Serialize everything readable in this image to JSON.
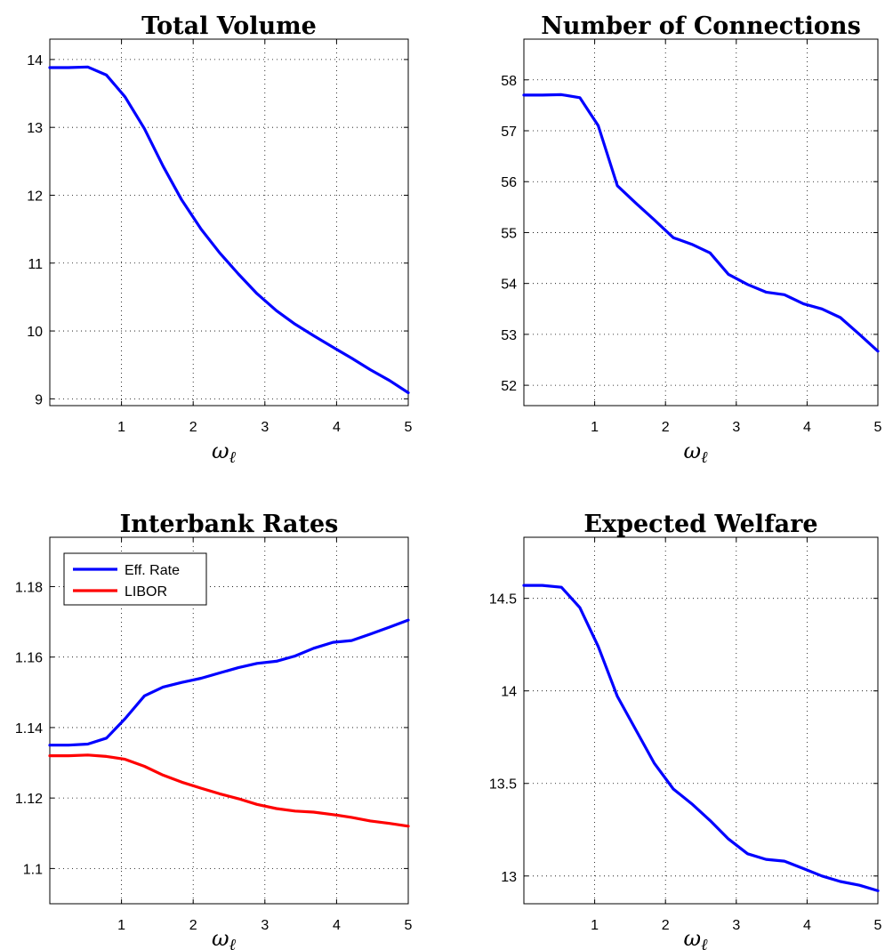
{
  "chart_data": [
    {
      "type": "line",
      "title": "Total Volume",
      "xlabel": "ωℓ",
      "xlim": [
        0,
        5
      ],
      "ylim": [
        8.9,
        14.3
      ],
      "xticks": [
        1,
        2,
        3,
        4,
        5
      ],
      "yticks": [
        9,
        10,
        11,
        12,
        13,
        14
      ],
      "ytick_labels": [
        "9",
        "10",
        "11",
        "12",
        "13",
        "14"
      ],
      "grid": true,
      "series": [
        {
          "color": "#0000ff",
          "x": [
            0,
            0.26,
            0.53,
            0.79,
            1.05,
            1.32,
            1.58,
            1.84,
            2.11,
            2.37,
            2.63,
            2.89,
            3.16,
            3.42,
            3.68,
            3.95,
            4.21,
            4.47,
            4.74,
            5.0
          ],
          "y": [
            13.88,
            13.88,
            13.89,
            13.77,
            13.45,
            12.98,
            12.43,
            11.93,
            11.5,
            11.15,
            10.84,
            10.55,
            10.3,
            10.1,
            9.93,
            9.76,
            9.6,
            9.43,
            9.27,
            9.09
          ]
        }
      ]
    },
    {
      "type": "line",
      "title": "Number of Connections",
      "xlabel": "ωℓ",
      "xlim": [
        0,
        5
      ],
      "ylim": [
        51.6,
        58.8
      ],
      "xticks": [
        1,
        2,
        3,
        4,
        5
      ],
      "yticks": [
        52,
        53,
        54,
        55,
        56,
        57,
        58
      ],
      "ytick_labels": [
        "52",
        "53",
        "54",
        "55",
        "56",
        "57",
        "58"
      ],
      "grid": true,
      "series": [
        {
          "color": "#0000ff",
          "x": [
            0,
            0.26,
            0.53,
            0.79,
            1.05,
            1.32,
            1.58,
            1.84,
            2.11,
            2.37,
            2.63,
            2.89,
            3.16,
            3.42,
            3.68,
            3.95,
            4.21,
            4.47,
            4.74,
            5.0
          ],
          "y": [
            57.7,
            57.7,
            57.71,
            57.65,
            57.1,
            55.92,
            55.58,
            55.25,
            54.9,
            54.77,
            54.6,
            54.18,
            53.98,
            53.83,
            53.78,
            53.6,
            53.5,
            53.33,
            53.0,
            52.67
          ]
        }
      ]
    },
    {
      "type": "line",
      "title": "Interbank Rates",
      "xlabel": "ωℓ",
      "xlim": [
        0,
        5
      ],
      "ylim": [
        1.09,
        1.194
      ],
      "xticks": [
        1,
        2,
        3,
        4,
        5
      ],
      "yticks": [
        1.1,
        1.12,
        1.14,
        1.16,
        1.18
      ],
      "ytick_labels": [
        "1.1",
        "1.12",
        "1.14",
        "1.16",
        "1.18"
      ],
      "grid": true,
      "legend": "top-left",
      "series": [
        {
          "name": "Eff. Rate",
          "color": "#0000ff",
          "x": [
            0,
            0.26,
            0.53,
            0.79,
            1.05,
            1.32,
            1.58,
            1.84,
            2.11,
            2.37,
            2.63,
            2.89,
            3.16,
            3.42,
            3.68,
            3.95,
            4.21,
            4.47,
            4.74,
            5.0
          ],
          "y": [
            1.135,
            1.135,
            1.1353,
            1.137,
            1.1425,
            1.149,
            1.1515,
            1.1528,
            1.154,
            1.1555,
            1.157,
            1.1582,
            1.1588,
            1.1603,
            1.1625,
            1.1642,
            1.1647,
            1.1665,
            1.1685,
            1.1705
          ]
        },
        {
          "name": "LIBOR",
          "color": "#ff0000",
          "x": [
            0,
            0.26,
            0.53,
            0.79,
            1.05,
            1.32,
            1.58,
            1.84,
            2.11,
            2.37,
            2.63,
            2.89,
            3.16,
            3.42,
            3.68,
            3.95,
            4.21,
            4.47,
            4.74,
            5.0
          ],
          "y": [
            1.132,
            1.132,
            1.1322,
            1.1318,
            1.131,
            1.129,
            1.1265,
            1.1245,
            1.1228,
            1.1212,
            1.1198,
            1.1182,
            1.117,
            1.1163,
            1.116,
            1.1153,
            1.1145,
            1.1135,
            1.1128,
            1.112
          ]
        }
      ]
    },
    {
      "type": "line",
      "title": "Expected Welfare",
      "xlabel": "ωℓ",
      "xlim": [
        0,
        5
      ],
      "ylim": [
        12.85,
        14.83
      ],
      "xticks": [
        1,
        2,
        3,
        4,
        5
      ],
      "yticks": [
        13,
        13.5,
        14,
        14.5
      ],
      "ytick_labels": [
        "13",
        "13.5",
        "14",
        "14.5"
      ],
      "grid": true,
      "series": [
        {
          "color": "#0000ff",
          "x": [
            0,
            0.26,
            0.53,
            0.79,
            1.05,
            1.32,
            1.58,
            1.84,
            2.11,
            2.37,
            2.63,
            2.89,
            3.16,
            3.42,
            3.68,
            3.95,
            4.21,
            4.47,
            4.74,
            5.0
          ],
          "y": [
            14.57,
            14.57,
            14.56,
            14.45,
            14.24,
            13.97,
            13.79,
            13.61,
            13.47,
            13.39,
            13.3,
            13.2,
            13.12,
            13.09,
            13.08,
            13.04,
            13.0,
            12.97,
            12.95,
            12.92
          ]
        }
      ]
    }
  ]
}
